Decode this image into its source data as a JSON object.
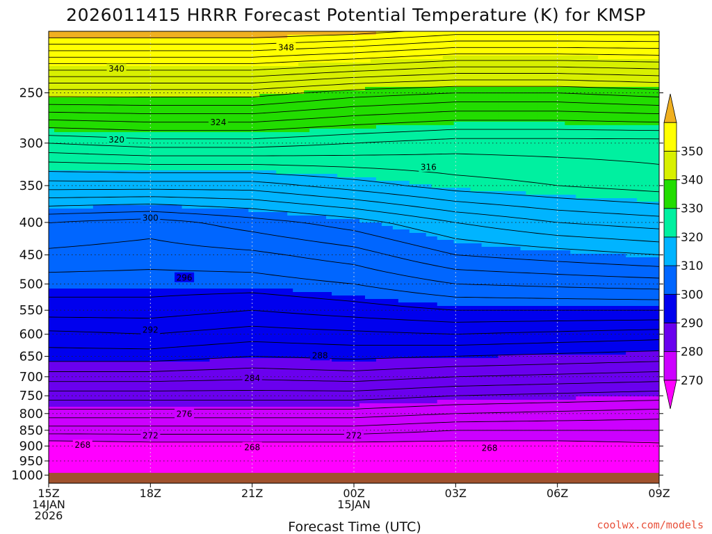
{
  "chart_data": {
    "type": "heatmap",
    "title": "2026011415 HRRR Forecast Potential Temperature (K) for KMSP",
    "xlabel": "Forecast Time (UTC)",
    "ylabel": "",
    "x_range": [
      0,
      18
    ],
    "x_ticks": [
      {
        "value": 0,
        "lines": [
          "15Z",
          "14JAN",
          "2026"
        ]
      },
      {
        "value": 3,
        "lines": [
          "18Z"
        ]
      },
      {
        "value": 6,
        "lines": [
          "21Z"
        ]
      },
      {
        "value": 9,
        "lines": [
          "00Z",
          "15JAN"
        ]
      },
      {
        "value": 12,
        "lines": [
          "03Z"
        ]
      },
      {
        "value": 15,
        "lines": [
          "06Z"
        ]
      },
      {
        "value": 18,
        "lines": [
          "09Z"
        ]
      }
    ],
    "y_scale": "log-pressure",
    "y_range_hPa": [
      1030,
      200
    ],
    "y_ticks": [
      250,
      300,
      350,
      400,
      450,
      500,
      550,
      600,
      650,
      700,
      750,
      800,
      850,
      900,
      950,
      1000
    ],
    "ground_pressure_hPa": 992,
    "colorbar": {
      "levels": [
        270,
        280,
        290,
        300,
        310,
        320,
        330,
        340,
        350
      ],
      "colors": [
        "#ff00ff",
        "#cc00ff",
        "#6a00ee",
        "#0000ee",
        "#0066ff",
        "#00b4ff",
        "#00f0a0",
        "#22dd00",
        "#d8f000",
        "#ffff00",
        "#f0b020"
      ],
      "extend": "both"
    },
    "contour_interval_K": 2,
    "contour_labels": [
      {
        "value": "348",
        "x": 7.0,
        "p": 212
      },
      {
        "value": "340",
        "x": 2.0,
        "p": 229
      },
      {
        "value": "324",
        "x": 5.0,
        "p": 278
      },
      {
        "value": "320",
        "x": 2.0,
        "p": 296
      },
      {
        "value": "316",
        "x": 11.2,
        "p": 327
      },
      {
        "value": "300",
        "x": 3.0,
        "p": 393
      },
      {
        "value": "296",
        "x": 4.0,
        "p": 488
      },
      {
        "value": "292",
        "x": 3.0,
        "p": 590
      },
      {
        "value": "288",
        "x": 8.0,
        "p": 648
      },
      {
        "value": "284",
        "x": 6.0,
        "p": 703
      },
      {
        "value": "276",
        "x": 4.0,
        "p": 800
      },
      {
        "value": "272",
        "x": 3.0,
        "p": 865
      },
      {
        "value": "272",
        "x": 9.0,
        "p": 865
      },
      {
        "value": "268",
        "x": 1.0,
        "p": 895
      },
      {
        "value": "268",
        "x": 6.0,
        "p": 903
      },
      {
        "value": "268",
        "x": 13.0,
        "p": 906
      }
    ],
    "theta_profiles": [
      {
        "x": 0,
        "points": [
          [
            1000,
            269
          ],
          [
            950,
            268.5
          ],
          [
            900,
            268.5
          ],
          [
            850,
            273
          ],
          [
            800,
            277
          ],
          [
            750,
            281
          ],
          [
            700,
            285
          ],
          [
            650,
            289
          ],
          [
            600,
            291.5
          ],
          [
            550,
            295
          ],
          [
            500,
            297
          ],
          [
            450,
            299.5
          ],
          [
            400,
            302
          ],
          [
            350,
            311
          ],
          [
            300,
            320
          ],
          [
            250,
            333
          ],
          [
            200,
            352
          ]
        ]
      },
      {
        "x": 3,
        "points": [
          [
            1000,
            269
          ],
          [
            950,
            268
          ],
          [
            900,
            269
          ],
          [
            850,
            273
          ],
          [
            800,
            277
          ],
          [
            750,
            281
          ],
          [
            700,
            285
          ],
          [
            650,
            289
          ],
          [
            600,
            292
          ],
          [
            550,
            295
          ],
          [
            500,
            297
          ],
          [
            450,
            299
          ],
          [
            400,
            301
          ],
          [
            350,
            311
          ],
          [
            300,
            321
          ],
          [
            250,
            333
          ],
          [
            200,
            352
          ]
        ]
      },
      {
        "x": 6,
        "points": [
          [
            1000,
            269
          ],
          [
            950,
            268
          ],
          [
            900,
            269
          ],
          [
            850,
            273
          ],
          [
            800,
            277
          ],
          [
            750,
            281
          ],
          [
            700,
            284.5
          ],
          [
            650,
            288
          ],
          [
            600,
            291
          ],
          [
            550,
            294
          ],
          [
            500,
            297
          ],
          [
            450,
            299.5
          ],
          [
            400,
            303
          ],
          [
            350,
            311
          ],
          [
            300,
            321
          ],
          [
            250,
            333
          ],
          [
            200,
            352
          ]
        ]
      },
      {
        "x": 9,
        "points": [
          [
            1000,
            269
          ],
          [
            950,
            268.5
          ],
          [
            900,
            269
          ],
          [
            850,
            273
          ],
          [
            800,
            277
          ],
          [
            750,
            281
          ],
          [
            700,
            285
          ],
          [
            650,
            288.5
          ],
          [
            600,
            291.5
          ],
          [
            550,
            295
          ],
          [
            500,
            298
          ],
          [
            450,
            301
          ],
          [
            400,
            305
          ],
          [
            350,
            313
          ],
          [
            300,
            320
          ],
          [
            250,
            331
          ],
          [
            200,
            351
          ]
        ]
      },
      {
        "x": 12,
        "points": [
          [
            1000,
            269
          ],
          [
            950,
            268.5
          ],
          [
            900,
            269
          ],
          [
            850,
            272
          ],
          [
            800,
            276
          ],
          [
            750,
            280
          ],
          [
            700,
            284
          ],
          [
            650,
            288
          ],
          [
            600,
            292
          ],
          [
            550,
            296
          ],
          [
            500,
            300
          ],
          [
            450,
            304
          ],
          [
            400,
            308
          ],
          [
            350,
            315
          ],
          [
            300,
            319
          ],
          [
            250,
            330
          ],
          [
            200,
            349
          ]
        ]
      },
      {
        "x": 15,
        "points": [
          [
            1000,
            269
          ],
          [
            950,
            268.5
          ],
          [
            900,
            269
          ],
          [
            850,
            272
          ],
          [
            800,
            275.5
          ],
          [
            750,
            279.5
          ],
          [
            700,
            283.5
          ],
          [
            650,
            287.5
          ],
          [
            600,
            291.5
          ],
          [
            550,
            296
          ],
          [
            500,
            300.5
          ],
          [
            450,
            305
          ],
          [
            400,
            310
          ],
          [
            350,
            316
          ],
          [
            300,
            319
          ],
          [
            250,
            330
          ],
          [
            200,
            349
          ]
        ]
      },
      {
        "x": 18,
        "points": [
          [
            1000,
            269
          ],
          [
            950,
            269
          ],
          [
            900,
            269.5
          ],
          [
            850,
            272
          ],
          [
            800,
            275
          ],
          [
            750,
            279
          ],
          [
            700,
            283
          ],
          [
            650,
            287
          ],
          [
            600,
            291
          ],
          [
            550,
            296
          ],
          [
            500,
            301
          ],
          [
            450,
            306
          ],
          [
            400,
            311
          ],
          [
            350,
            317
          ],
          [
            300,
            319
          ],
          [
            250,
            331
          ],
          [
            200,
            349
          ]
        ]
      }
    ]
  },
  "credit": "coolwx.com/models"
}
